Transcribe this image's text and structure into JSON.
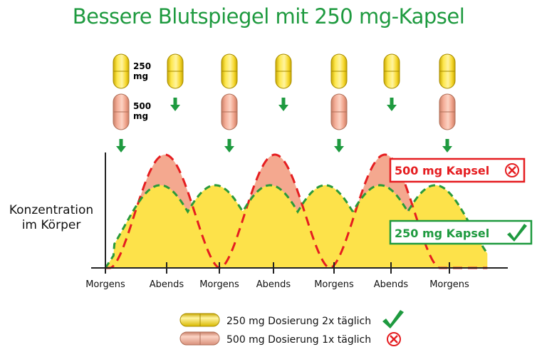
{
  "title": "Bessere Blutspiegel mit 250 mg-Kapsel",
  "ylabel_lines": [
    "Konzentration",
    "im Körper"
  ],
  "capsule_labels": {
    "small_value": "250",
    "small_unit": "mg",
    "large_value": "500",
    "large_unit": "mg"
  },
  "colors": {
    "title": "#1e9a3f",
    "yellow_fill": "#fde24a",
    "salmon_fill": "#f4a88f",
    "green_dash": "#2a9a3a",
    "red_dash": "#e51d20",
    "arrow": "#1e9a3f"
  },
  "boxes": {
    "bad": {
      "label": "500 mg Kapsel",
      "symbol": "cross"
    },
    "good": {
      "label": "250 mg Kapsel",
      "symbol": "check"
    }
  },
  "legend": [
    {
      "label": "250 mg Dosierung 2x täglich",
      "capsule": "yellow",
      "symbol": "check"
    },
    {
      "label": "500 mg Dosierung 1x täglich",
      "capsule": "salmon",
      "symbol": "cross"
    }
  ],
  "chart_data": {
    "type": "area",
    "x_tick_labels": [
      "Morgens",
      "Abends",
      "Morgens",
      "Abends",
      "Morgens",
      "Abends",
      "Morgens"
    ],
    "grid": false,
    "series": [
      {
        "dose": "250 mg",
        "style": "green-dashed",
        "dose_times": [
          0.5,
          1,
          1.5,
          2,
          2.5,
          3
        ],
        "peak_level": 0.73,
        "trough_level": 0.46
      },
      {
        "dose": "500 mg",
        "style": "red-dashed",
        "dose_times": [
          0.5,
          1.5,
          2.5
        ],
        "peak_level": 1.0,
        "trough_level": 0.0
      }
    ]
  }
}
